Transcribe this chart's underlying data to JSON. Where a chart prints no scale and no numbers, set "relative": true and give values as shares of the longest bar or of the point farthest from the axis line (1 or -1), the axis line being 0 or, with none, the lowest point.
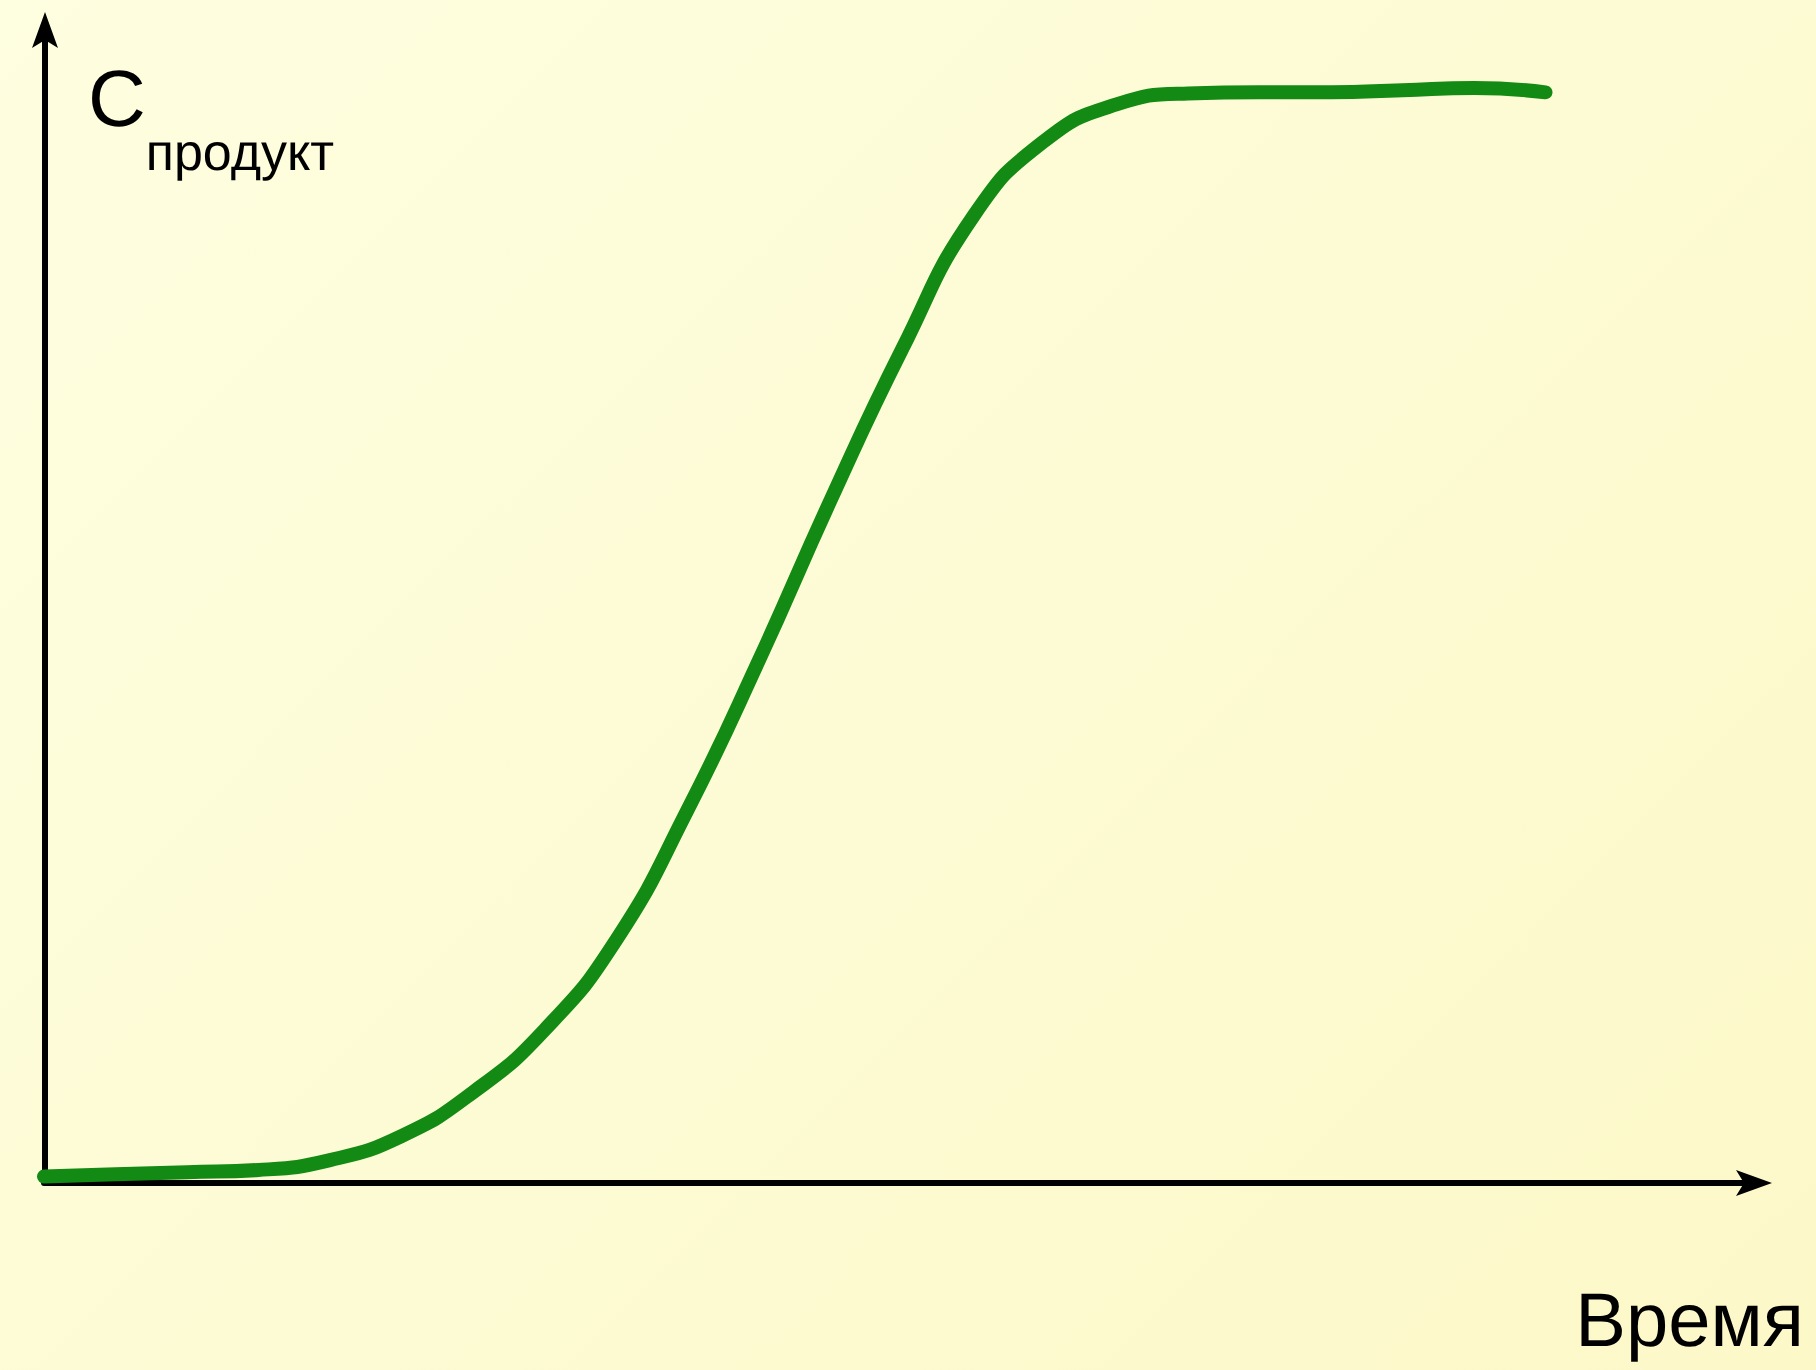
{
  "chart_data": {
    "type": "line",
    "relative": true,
    "xlabel": "Время",
    "ylabel": "C$_{продукт}$",
    "color": "#138a13",
    "line_style": "solid",
    "categories": [
      null,
      null,
      null,
      null,
      null,
      null,
      null,
      null,
      null,
      null,
      null,
      null,
      null,
      null,
      null,
      null,
      null,
      null,
      null,
      null,
      null,
      null,
      null,
      null,
      null
    ],
    "values": [
      0.005,
      0.007,
      0.009,
      0.011,
      0.02,
      0.042,
      0.082,
      0.139,
      0.221,
      0.34,
      0.477,
      0.623,
      0.761,
      0.883,
      0.952,
      0.985,
      0.995,
      0.996,
      0.996,
      0.998,
      1,
      0.996,
      null,
      null,
      null
    ]
  }
}
